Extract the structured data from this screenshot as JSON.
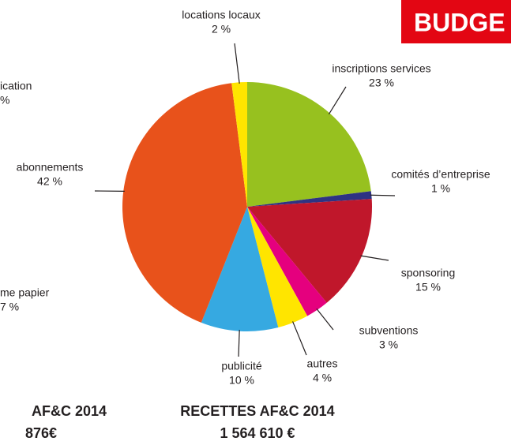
{
  "chart_data": {
    "type": "pie",
    "title": "RECETTES AF&C 2014",
    "subtitle": "1 564 610 €",
    "categories": [
      "inscriptions services",
      "comités d’entreprise",
      "sponsoring",
      "subventions",
      "autres",
      "publicité",
      "abonnements",
      "locations locaux"
    ],
    "values": [
      23,
      1,
      15,
      3,
      4,
      10,
      42,
      2
    ],
    "value_labels": [
      "23 %",
      "1 %",
      "15 %",
      "3 %",
      "4 %",
      "10 %",
      "42 %",
      "2 %"
    ],
    "colors": [
      "#97c11f",
      "#2e3383",
      "#c0172b",
      "#e5007e",
      "#ffe500",
      "#36a9e1",
      "#e8521b",
      "#ffe500"
    ]
  },
  "badge": "BUDGE",
  "left_fragments": [
    "ication",
    "%",
    "me papier",
    "7 %",
    "AF&C 2014",
    "876€"
  ]
}
